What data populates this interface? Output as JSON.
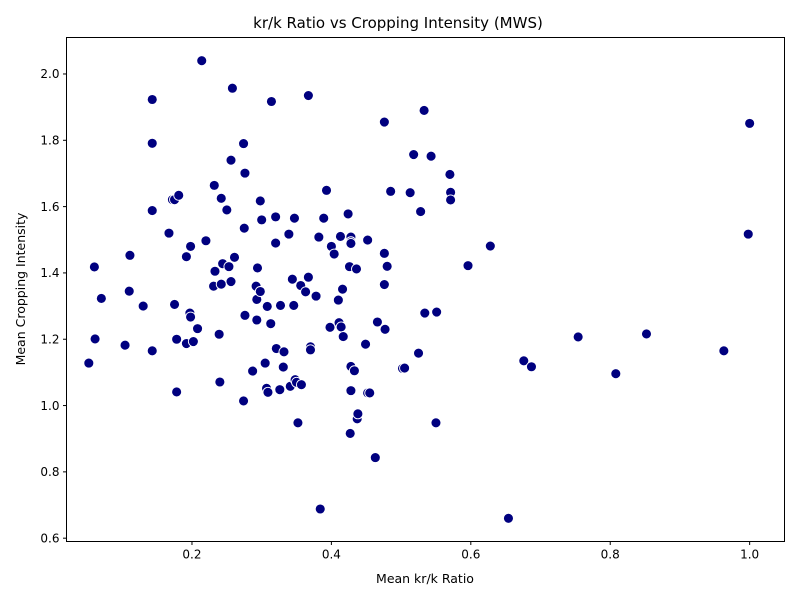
{
  "chart_data": {
    "type": "scatter",
    "title": "kr/k Ratio vs Cropping Intensity (MWS)",
    "xlabel": "Mean kr/k Ratio",
    "ylabel": "Mean Cropping Intensity",
    "xlim": [
      0.02,
      1.05
    ],
    "ylim": [
      0.59,
      2.11
    ],
    "xticks": [
      "0.2",
      "0.4",
      "0.6",
      "0.8",
      "1.0"
    ],
    "yticks": [
      "0.6",
      "0.8",
      "1.0",
      "1.2",
      "1.4",
      "1.6",
      "1.8",
      "2.0"
    ],
    "grid": false,
    "marker_color": "#00007f",
    "series": [
      {
        "points": [
          [
            0.052,
            1.128
          ],
          [
            0.06,
            1.418
          ],
          [
            0.061,
            1.201
          ],
          [
            0.07,
            1.323
          ],
          [
            0.104,
            1.182
          ],
          [
            0.11,
            1.345
          ],
          [
            0.111,
            1.453
          ],
          [
            0.13,
            1.3
          ],
          [
            0.143,
            1.923
          ],
          [
            0.143,
            1.791
          ],
          [
            0.143,
            1.588
          ],
          [
            0.143,
            1.165
          ],
          [
            0.167,
            1.52
          ],
          [
            0.172,
            1.621
          ],
          [
            0.175,
            1.621
          ],
          [
            0.175,
            1.305
          ],
          [
            0.178,
            1.2
          ],
          [
            0.178,
            1.041
          ],
          [
            0.181,
            1.634
          ],
          [
            0.192,
            1.449
          ],
          [
            0.192,
            1.187
          ],
          [
            0.197,
            1.279
          ],
          [
            0.198,
            1.267
          ],
          [
            0.198,
            1.48
          ],
          [
            0.202,
            1.193
          ],
          [
            0.208,
            1.232
          ],
          [
            0.214,
            2.04
          ],
          [
            0.22,
            1.497
          ],
          [
            0.231,
            1.36
          ],
          [
            0.232,
            1.664
          ],
          [
            0.233,
            1.405
          ],
          [
            0.239,
            1.215
          ],
          [
            0.24,
            1.071
          ],
          [
            0.242,
            1.625
          ],
          [
            0.242,
            1.366
          ],
          [
            0.244,
            1.428
          ],
          [
            0.25,
            1.59
          ],
          [
            0.253,
            1.419
          ],
          [
            0.256,
            1.74
          ],
          [
            0.256,
            1.374
          ],
          [
            0.258,
            1.957
          ],
          [
            0.261,
            1.447
          ],
          [
            0.274,
            1.79
          ],
          [
            0.274,
            1.014
          ],
          [
            0.275,
            1.535
          ],
          [
            0.276,
            1.701
          ],
          [
            0.276,
            1.272
          ],
          [
            0.287,
            1.104
          ],
          [
            0.292,
            1.36
          ],
          [
            0.293,
            1.32
          ],
          [
            0.293,
            1.258
          ],
          [
            0.294,
            1.415
          ],
          [
            0.298,
            1.617
          ],
          [
            0.298,
            1.344
          ],
          [
            0.3,
            1.56
          ],
          [
            0.305,
            1.128
          ],
          [
            0.307,
            1.052
          ],
          [
            0.308,
            1.299
          ],
          [
            0.309,
            1.04
          ],
          [
            0.313,
            1.247
          ],
          [
            0.314,
            1.917
          ],
          [
            0.32,
            1.569
          ],
          [
            0.32,
            1.49
          ],
          [
            0.321,
            1.172
          ],
          [
            0.326,
            1.048
          ],
          [
            0.327,
            1.302
          ],
          [
            0.331,
            1.116
          ],
          [
            0.332,
            1.162
          ],
          [
            0.339,
            1.517
          ],
          [
            0.341,
            1.058
          ],
          [
            0.344,
            1.381
          ],
          [
            0.346,
            1.302
          ],
          [
            0.347,
            1.565
          ],
          [
            0.348,
            1.078
          ],
          [
            0.35,
            1.07
          ],
          [
            0.352,
            0.948
          ],
          [
            0.356,
            1.362
          ],
          [
            0.357,
            1.063
          ],
          [
            0.363,
            1.343
          ],
          [
            0.367,
            1.935
          ],
          [
            0.367,
            1.387
          ],
          [
            0.37,
            1.177
          ],
          [
            0.37,
            1.168
          ],
          [
            0.378,
            1.33
          ],
          [
            0.382,
            1.508
          ],
          [
            0.384,
            0.688
          ],
          [
            0.389,
            1.565
          ],
          [
            0.393,
            1.649
          ],
          [
            0.398,
            1.236
          ],
          [
            0.4,
            1.48
          ],
          [
            0.404,
            1.457
          ],
          [
            0.41,
            1.318
          ],
          [
            0.411,
            1.25
          ],
          [
            0.413,
            1.51
          ],
          [
            0.414,
            1.237
          ],
          [
            0.416,
            1.351
          ],
          [
            0.417,
            1.208
          ],
          [
            0.424,
            1.578
          ],
          [
            0.426,
            1.419
          ],
          [
            0.427,
            0.916
          ],
          [
            0.428,
            1.508
          ],
          [
            0.428,
            1.494
          ],
          [
            0.428,
            1.489
          ],
          [
            0.428,
            1.118
          ],
          [
            0.428,
            1.045
          ],
          [
            0.433,
            1.105
          ],
          [
            0.436,
            1.412
          ],
          [
            0.437,
            0.96
          ],
          [
            0.438,
            0.975
          ],
          [
            0.449,
            1.185
          ],
          [
            0.452,
            1.499
          ],
          [
            0.452,
            1.038
          ],
          [
            0.455,
            1.038
          ],
          [
            0.463,
            0.843
          ],
          [
            0.466,
            1.252
          ],
          [
            0.476,
            1.855
          ],
          [
            0.476,
            1.459
          ],
          [
            0.476,
            1.365
          ],
          [
            0.477,
            1.23
          ],
          [
            0.48,
            1.42
          ],
          [
            0.485,
            1.646
          ],
          [
            0.502,
            1.112
          ],
          [
            0.505,
            1.113
          ],
          [
            0.513,
            1.642
          ],
          [
            0.518,
            1.757
          ],
          [
            0.525,
            1.158
          ],
          [
            0.528,
            1.585
          ],
          [
            0.533,
            1.89
          ],
          [
            0.534,
            1.279
          ],
          [
            0.543,
            1.752
          ],
          [
            0.55,
            0.948
          ],
          [
            0.551,
            1.282
          ],
          [
            0.57,
            1.697
          ],
          [
            0.571,
            1.643
          ],
          [
            0.571,
            1.62
          ],
          [
            0.596,
            1.422
          ],
          [
            0.628,
            1.481
          ],
          [
            0.654,
            0.66
          ],
          [
            0.676,
            1.135
          ],
          [
            0.687,
            1.117
          ],
          [
            0.754,
            1.207
          ],
          [
            0.808,
            1.096
          ],
          [
            0.852,
            1.216
          ],
          [
            0.963,
            1.165
          ],
          [
            0.998,
            1.517
          ],
          [
            1.0,
            1.851
          ]
        ]
      }
    ]
  }
}
